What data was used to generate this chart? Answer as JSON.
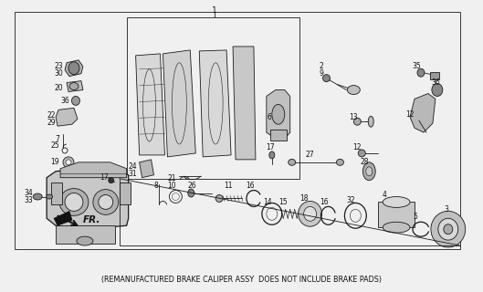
{
  "caption": "(REMANUFACTURED BRAKE CALIPER ASSY  DOES NOT INCLUDE BRAKE PADS)",
  "bg_color": "#f0f0f0",
  "line_color": "#1a1a1a",
  "text_color": "#111111",
  "fig_width": 5.29,
  "fig_height": 3.2,
  "dpi": 100,
  "caption_fontsize": 5.8,
  "label_fontsize": 6.0
}
